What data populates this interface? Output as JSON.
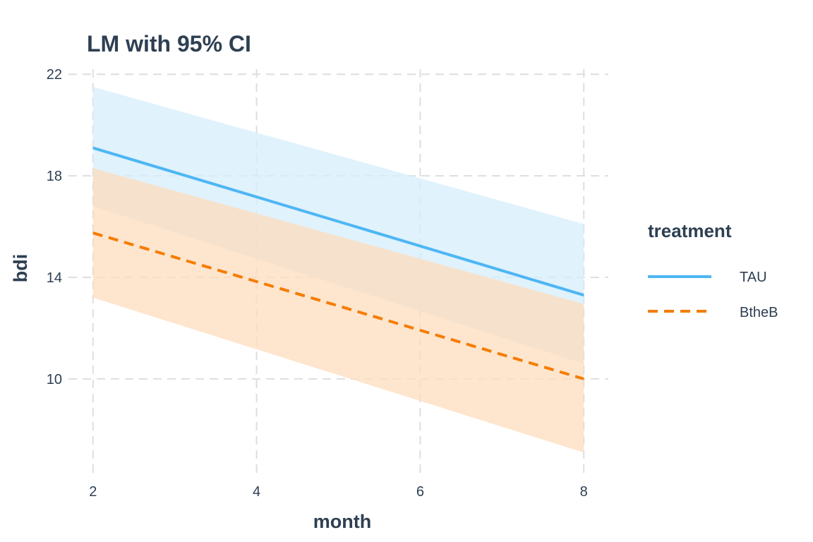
{
  "chart_data": {
    "type": "line",
    "title": "LM with 95% CI",
    "xlabel": "month",
    "ylabel": "bdi",
    "x_ticks": [
      "2",
      "4",
      "6",
      "8"
    ],
    "y_ticks": [
      "10",
      "14",
      "18",
      "22"
    ],
    "xlim": [
      1.7,
      8.3
    ],
    "ylim": [
      6.3,
      22.2
    ],
    "grid": true,
    "legend": {
      "title": "treatment",
      "placement": "right",
      "entries": [
        "TAU",
        "BtheB"
      ]
    },
    "series": [
      {
        "name": "TAU",
        "color": "#4db6f5",
        "dash": "solid",
        "x": [
          2,
          8
        ],
        "y": [
          19.1,
          13.3
        ],
        "ci_lower": [
          16.8,
          10.6
        ],
        "ci_upper": [
          21.5,
          16.1
        ],
        "ci_fill": "#d6eefb"
      },
      {
        "name": "BtheB",
        "color": "#f57c00",
        "dash": "dashed",
        "x": [
          2,
          8
        ],
        "y": [
          15.75,
          10.0
        ],
        "ci_lower": [
          13.2,
          7.1
        ],
        "ci_upper": [
          18.3,
          12.95
        ],
        "ci_fill": "#fddcbc"
      }
    ]
  }
}
